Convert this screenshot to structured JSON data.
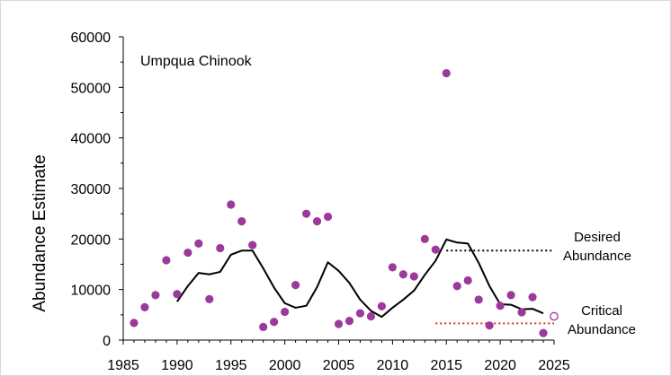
{
  "chart_data": {
    "type": "scatter",
    "title": "Umpqua Chinook",
    "xlabel": "",
    "ylabel": "Abundance Estimate",
    "xlim": [
      1985,
      2025
    ],
    "ylim": [
      0,
      60000
    ],
    "x_ticks": [
      1985,
      1990,
      1995,
      2000,
      2005,
      2010,
      2015,
      2020,
      2025
    ],
    "y_ticks": [
      0,
      10000,
      20000,
      30000,
      40000,
      50000,
      60000
    ],
    "grid": false,
    "colors": {
      "points": "#9b3a9b",
      "line": "#000000",
      "desired": "#000000",
      "critical": "#e0301e"
    },
    "series": [
      {
        "type": "scatter",
        "x": [
          1986,
          1987,
          1988,
          1989,
          1990,
          1991,
          1992,
          1993,
          1994,
          1995,
          1996,
          1997,
          1998,
          1999,
          2000,
          2001,
          2002,
          2003,
          2004,
          2005,
          2006,
          2007,
          2008,
          2009,
          2010,
          2011,
          2012,
          2013,
          2014,
          2015,
          2016,
          2017,
          2018,
          2019,
          2020,
          2021,
          2022,
          2023,
          2024
        ],
        "y": [
          3400,
          6500,
          8900,
          15800,
          9100,
          17300,
          19100,
          8100,
          18200,
          26800,
          23500,
          18800,
          2600,
          3600,
          5600,
          10900,
          25000,
          23500,
          24400,
          3200,
          3800,
          5300,
          4700,
          6700,
          14400,
          13000,
          12600,
          20000,
          17900,
          52800,
          10700,
          11800,
          8000,
          2900,
          6800,
          8900,
          5500,
          8500,
          1400
        ]
      },
      {
        "type": "line",
        "x": [
          1990,
          1991,
          1992,
          1993,
          1994,
          1995,
          1996,
          1997,
          1998,
          1999,
          2000,
          2001,
          2002,
          2003,
          2004,
          2005,
          2006,
          2007,
          2008,
          2009,
          2010,
          2011,
          2012,
          2013,
          2014,
          2015,
          2016,
          2017,
          2018,
          2019,
          2020,
          2021,
          2022,
          2023,
          2024
        ],
        "y": [
          7600,
          10700,
          13300,
          13000,
          13500,
          16900,
          17700,
          17700,
          14200,
          10400,
          7300,
          6400,
          6800,
          10500,
          15400,
          13700,
          11300,
          8000,
          5800,
          4600,
          6400,
          8000,
          9800,
          12900,
          15700,
          19900,
          19300,
          19100,
          15300,
          10700,
          7100,
          7000,
          6100,
          6200,
          5300
        ]
      },
      {
        "type": "open-point",
        "x": [
          2025
        ],
        "y": [
          4700
        ]
      }
    ],
    "reference_lines": [
      {
        "style": "dotted",
        "color": "#000000",
        "x": [
          2015,
          2025
        ],
        "y": 17700,
        "label_lines": [
          "Desired",
          "Abundance"
        ]
      },
      {
        "style": "dotted",
        "color": "#e0301e",
        "x": [
          2014,
          2025
        ],
        "y": 3300,
        "label_lines": [
          "Critical",
          "Abundance"
        ]
      }
    ]
  }
}
